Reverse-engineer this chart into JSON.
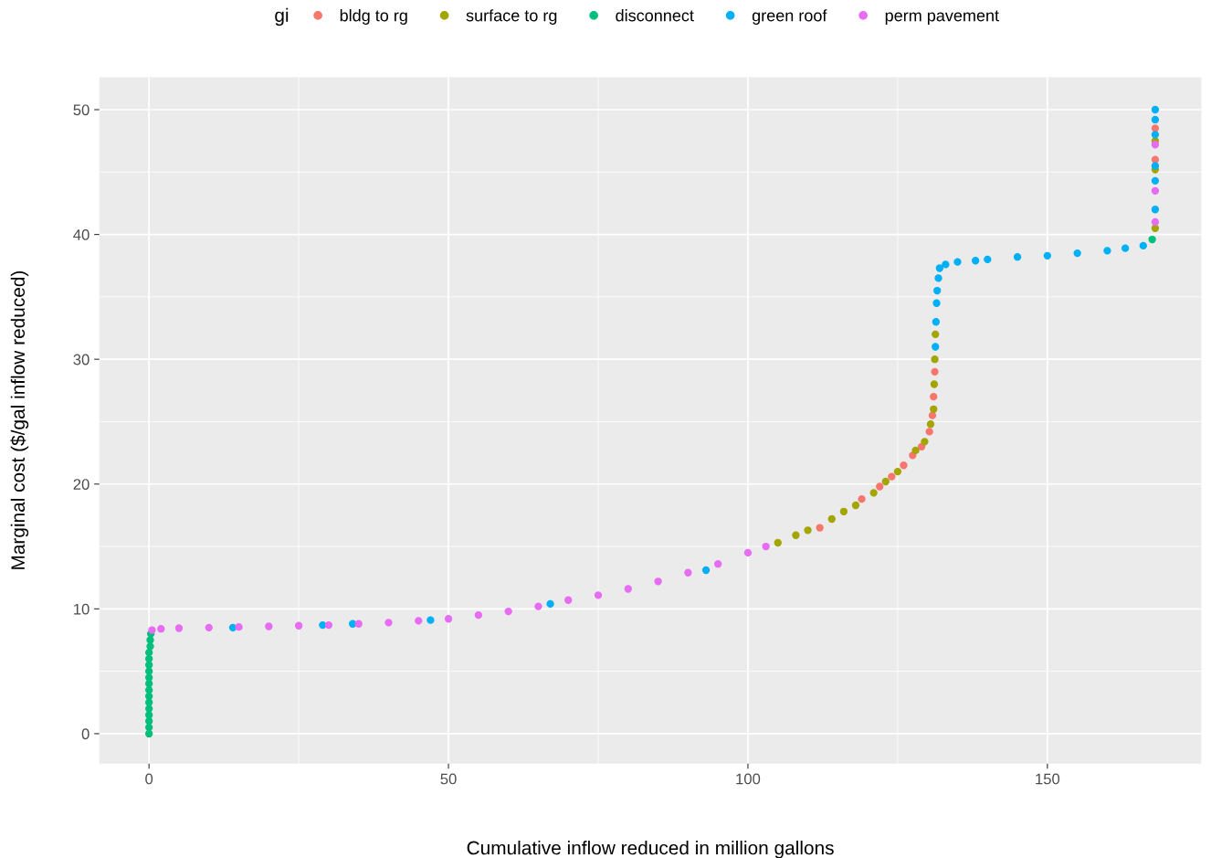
{
  "chart_data": {
    "type": "scatter",
    "xlabel": "Cumulative inflow reduced in million gallons",
    "ylabel": "Marginal cost ($/gal inflow reduced)",
    "legend_title": "gi",
    "legend": "top",
    "grid": true,
    "marker": "circle",
    "xlim": [
      -8.3,
      175.7
    ],
    "ylim": [
      -2.4,
      52.6
    ],
    "xticks": [
      0,
      50,
      100,
      150
    ],
    "yticks": [
      0,
      10,
      20,
      30,
      40,
      50
    ],
    "series": [
      {
        "name": "bldg to rg",
        "color": "#f8766d",
        "x": [
          112,
          119,
          122,
          124,
          126,
          127.5,
          129,
          130.3,
          130.8,
          131,
          131.2,
          168,
          168
        ],
        "values": [
          16.5,
          18.8,
          19.8,
          20.6,
          21.5,
          22.3,
          23.0,
          24.2,
          25.5,
          27,
          29,
          48.5,
          46
        ]
      },
      {
        "name": "surface to rg",
        "color": "#a3a500",
        "x": [
          105,
          108,
          110,
          114,
          116,
          118,
          121,
          123,
          125,
          128,
          129.5,
          130.5,
          131,
          131.1,
          131.2,
          131.3,
          168,
          168,
          168
        ],
        "values": [
          15.3,
          15.9,
          16.3,
          17.2,
          17.8,
          18.3,
          19.3,
          20.2,
          21.0,
          22.7,
          23.4,
          24.8,
          26,
          28,
          30,
          32,
          47.5,
          45.2,
          40.5
        ]
      },
      {
        "name": "disconnect",
        "color": "#00bf7d",
        "x": [
          0,
          0,
          0,
          0,
          0,
          0,
          0,
          0,
          0,
          0,
          0,
          0,
          0,
          0,
          0.2,
          0.2,
          0.3,
          167.5
        ],
        "values": [
          0,
          0.5,
          1,
          1.5,
          2,
          2.5,
          3,
          3.5,
          4,
          4.5,
          5,
          5.5,
          6,
          6.5,
          7,
          7.5,
          8,
          39.6
        ]
      },
      {
        "name": "green roof",
        "color": "#00b0f6",
        "x": [
          14,
          29,
          34,
          47,
          67,
          93,
          131.3,
          131.4,
          131.5,
          131.6,
          131.8,
          132,
          133,
          135,
          138,
          140,
          145,
          150,
          155,
          160,
          163,
          166,
          168,
          168,
          168,
          168,
          168,
          168
        ],
        "values": [
          8.5,
          8.7,
          8.8,
          9.1,
          10.4,
          13.1,
          31,
          33,
          34.5,
          35.5,
          36.5,
          37.3,
          37.6,
          37.8,
          37.9,
          38.0,
          38.2,
          38.3,
          38.5,
          38.7,
          38.9,
          39.1,
          50,
          49.2,
          48,
          45.5,
          44.3,
          42
        ]
      },
      {
        "name": "perm pavement",
        "color": "#e76bf3",
        "x": [
          0.5,
          2,
          5,
          10,
          15,
          20,
          25,
          30,
          35,
          40,
          45,
          50,
          55,
          60,
          65,
          70,
          75,
          80,
          85,
          90,
          95,
          100,
          103,
          168,
          168,
          168
        ],
        "values": [
          8.3,
          8.4,
          8.45,
          8.5,
          8.55,
          8.6,
          8.65,
          8.7,
          8.8,
          8.9,
          9.05,
          9.2,
          9.5,
          9.8,
          10.2,
          10.7,
          11.1,
          11.6,
          12.2,
          12.9,
          13.6,
          14.5,
          15.0,
          47.2,
          43.5,
          41
        ]
      }
    ]
  }
}
